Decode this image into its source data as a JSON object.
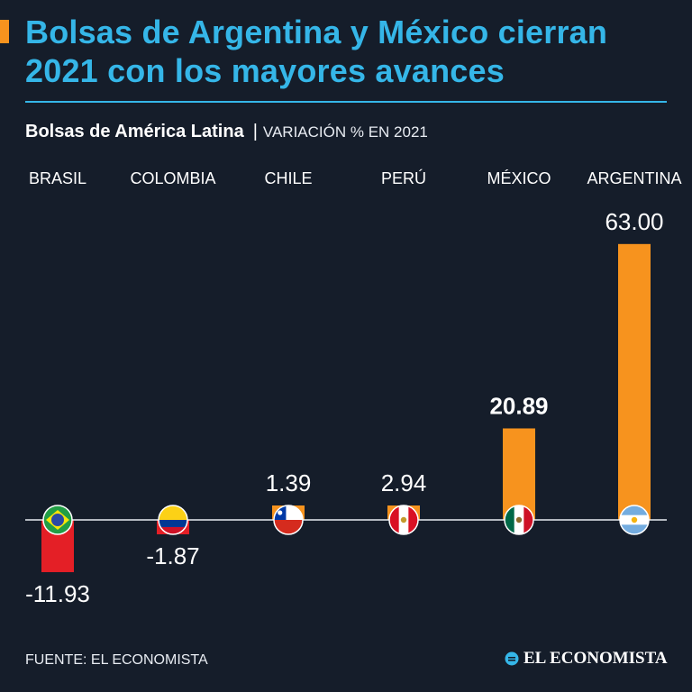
{
  "header": {
    "title_line1": "Bolsas de Argentina y México cierran",
    "title_line2": "2021 con los mayores avances",
    "subtitle_main": "Bolsas de América Latina",
    "subtitle_separator": "|",
    "subtitle_note": "VARIACIÓN % EN 2021"
  },
  "footer": {
    "source": "FUENTE: EL ECONOMISTA",
    "brand": "EL ECONOMISTA"
  },
  "colors": {
    "background": "#151d2a",
    "accent_blue": "#35b6e8",
    "positive": "#f7931e",
    "negative": "#e41f26"
  },
  "chart_data": {
    "type": "bar",
    "title": "Bolsas de América Latina",
    "ylabel": "Variación % en 2021",
    "categories": [
      "BRASIL",
      "COLOMBIA",
      "CHILE",
      "PERÚ",
      "MÉXICO",
      "ARGENTINA"
    ],
    "values": [
      -11.93,
      -1.87,
      1.39,
      2.94,
      20.89,
      63.0
    ],
    "value_labels": [
      "-11.93",
      "-1.87",
      "1.39",
      "2.94",
      "20.89",
      "63.00"
    ],
    "highlight": "MÉXICO",
    "flags": [
      "brazil-flag-icon",
      "colombia-flag-icon",
      "chile-flag-icon",
      "peru-flag-icon",
      "mexico-flag-icon",
      "argentina-flag-icon"
    ],
    "grid": false
  }
}
